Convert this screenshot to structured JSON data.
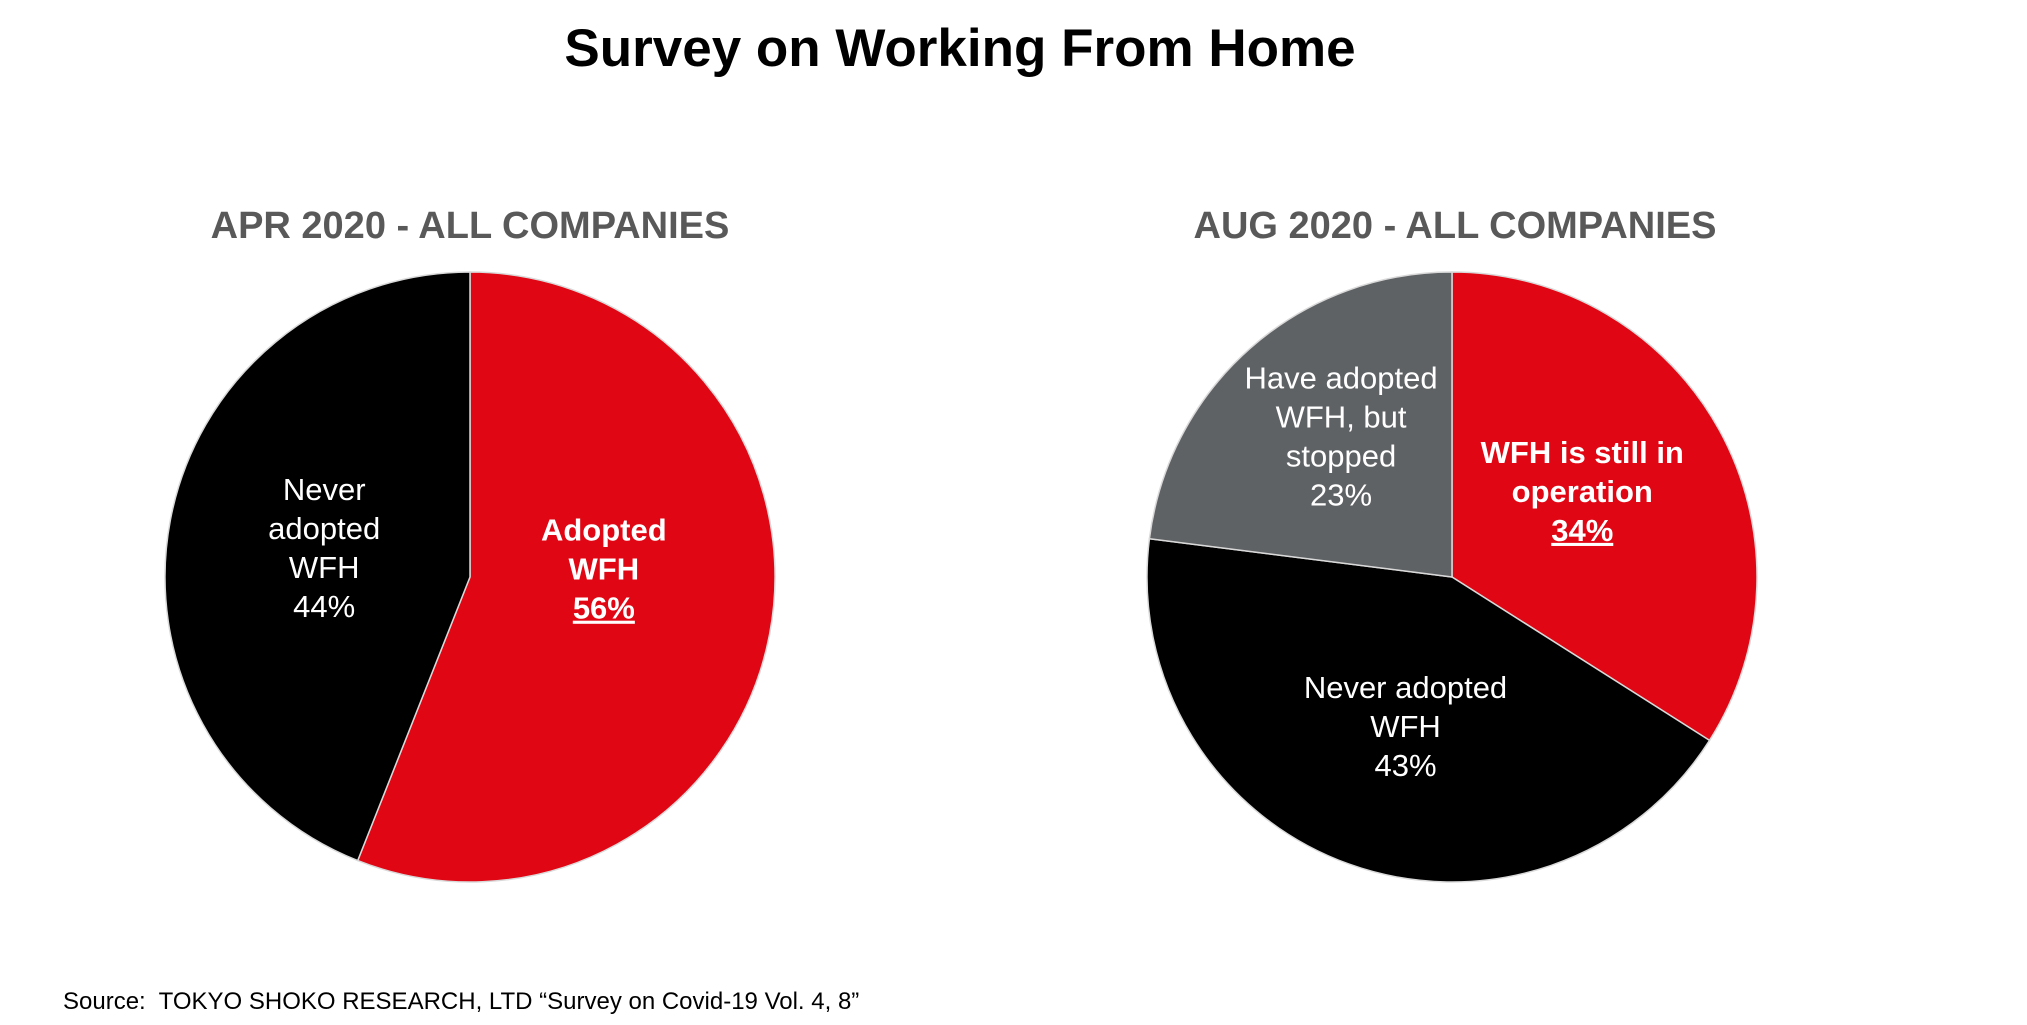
{
  "title": "Survey on Working From Home",
  "source": "Source:  TOKYO SHOKO RESEARCH, LTD “Survey on Covid-19 Vol. 4, 8”",
  "colors": {
    "red": "#e10613",
    "black": "#000000",
    "gray": "#5f6265",
    "subtitle": "#595959",
    "label_light": "#ffffff"
  },
  "chart_data": [
    {
      "type": "pie",
      "title": "APR 2020 - ALL COMPANIES",
      "slices": [
        {
          "name": "Adopted WFH",
          "value": 56,
          "color": "#e10613",
          "label_lines": [
            "Adopted",
            "WFH"
          ],
          "value_label": "56%",
          "bold": true,
          "underline_value": true
        },
        {
          "name": "Never adopted WFH",
          "value": 44,
          "color": "#000000",
          "label_lines": [
            "Never",
            "adopted",
            "WFH"
          ],
          "value_label": "44%",
          "bold": false,
          "underline_value": false
        }
      ]
    },
    {
      "type": "pie",
      "title": "AUG 2020 -  ALL COMPANIES",
      "slices": [
        {
          "name": "WFH is still in operation",
          "value": 34,
          "color": "#e10613",
          "label_lines": [
            "WFH is still in",
            "operation"
          ],
          "value_label": "34%",
          "bold": true,
          "underline_value": true
        },
        {
          "name": "Never adopted WFH",
          "value": 43,
          "color": "#000000",
          "label_lines": [
            "Never adopted",
            "WFH"
          ],
          "value_label": "43%",
          "bold": false,
          "underline_value": false
        },
        {
          "name": "Have adopted WFH, but stopped",
          "value": 23,
          "color": "#5f6265",
          "label_lines": [
            "Have adopted",
            "WFH, but",
            "stopped"
          ],
          "value_label": "23%",
          "bold": false,
          "underline_value": false
        }
      ]
    }
  ]
}
